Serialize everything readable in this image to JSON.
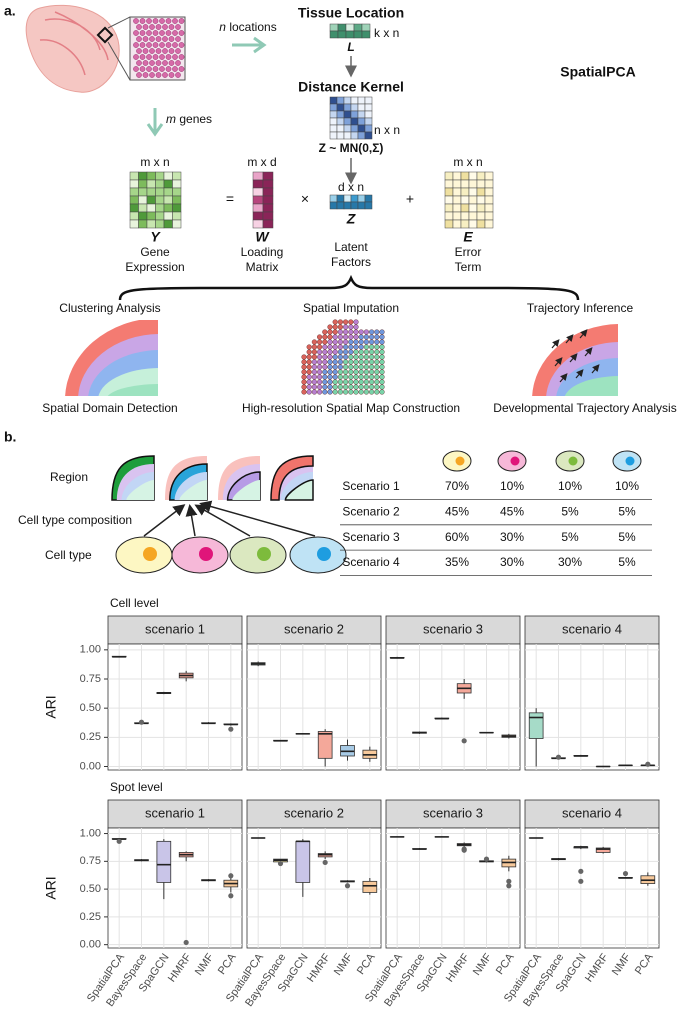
{
  "panel_a": {
    "label": "a.",
    "n_locations": {
      "var": "n",
      "text": "locations"
    },
    "m_genes": {
      "var": "m",
      "text": "genes"
    },
    "tissue_location": {
      "title": "Tissue Location",
      "symbol": "L",
      "dims": "k x n"
    },
    "distance_kernel": {
      "title": "Distance Kernel",
      "dims": "n x n",
      "prior": "Z ~ MN(0,Σ)"
    },
    "method": "SpatialPCA",
    "terms": [
      {
        "symbol": "Y",
        "dims": "m x n",
        "label": "Gene Expression"
      },
      {
        "symbol": "W",
        "dims": "m x d",
        "label": "Loading Matrix"
      },
      {
        "symbol": "Z",
        "dims": "d x n",
        "label": "Latent Factors"
      },
      {
        "symbol": "E",
        "dims": "m x n",
        "label": "Error Term"
      }
    ],
    "operators": [
      "=",
      "×",
      "+"
    ],
    "applications": [
      {
        "title": "Clustering Analysis",
        "caption": "Spatial Domain Detection"
      },
      {
        "title": "Spatial Imputation",
        "caption": "High-resolution Spatial Map Construction"
      },
      {
        "title": "Trajectory Inference",
        "caption": "Developmental Trajectory Analysis"
      }
    ]
  },
  "panel_b": {
    "label": "b.",
    "region": "Region",
    "composition": "Cell type composition",
    "cell_type": "Cell type",
    "table": {
      "rows": [
        [
          "Scenario 1",
          "70%",
          "10%",
          "10%",
          "10%"
        ],
        [
          "Scenario 2",
          "45%",
          "45%",
          "5%",
          "5%"
        ],
        [
          "Scenario 3",
          "60%",
          "30%",
          "5%",
          "5%"
        ],
        [
          "Scenario 4",
          "35%",
          "30%",
          "30%",
          "5%"
        ]
      ]
    }
  },
  "chart_data": [
    {
      "type": "box",
      "title": "Cell level",
      "ylabel": "ARI",
      "colors": [
        "#a6dbc8",
        "#f2e7a0",
        "#c9c5e8",
        "#f4a89a",
        "#a8cbe6",
        "#f7c99b"
      ],
      "ylim": [
        -0.03,
        1.05
      ],
      "yticks": [
        {
          "value": 0,
          "label": "0.00"
        },
        {
          "value": 0.25,
          "label": "0.25"
        },
        {
          "value": 0.5,
          "label": "0.50"
        },
        {
          "value": 0.75,
          "label": "0.75"
        },
        {
          "value": 1,
          "label": "1.00"
        }
      ],
      "grid": true,
      "facets": [
        {
          "title": "scenario 1",
          "boxes": [
            [
              0.935,
              0.94,
              0.94,
              0.945,
              0.945
            ],
            [
              0.36,
              0.37,
              0.37,
              0.375,
              0.38
            ],
            [
              0.62,
              0.625,
              0.63,
              0.635,
              0.64
            ],
            [
              0.73,
              0.76,
              0.78,
              0.8,
              0.82
            ],
            [
              0.365,
              0.37,
              0.37,
              0.375,
              0.38
            ],
            [
              0.35,
              0.36,
              0.36,
              0.365,
              0.37
            ]
          ],
          "outliers": [
            [],
            [
              0.38
            ],
            [],
            [],
            [],
            [
              0.32
            ]
          ]
        },
        {
          "title": "scenario 2",
          "boxes": [
            [
              0.86,
              0.87,
              0.88,
              0.89,
              0.9
            ],
            [
              0.22,
              0.22,
              0.22,
              0.225,
              0.225
            ],
            [
              0.275,
              0.28,
              0.28,
              0.28,
              0.285
            ],
            [
              0,
              0.07,
              0.28,
              0.3,
              0.32
            ],
            [
              0.05,
              0.09,
              0.13,
              0.18,
              0.23
            ],
            [
              0.04,
              0.07,
              0.1,
              0.14,
              0.17
            ]
          ],
          "outliers": [
            [],
            [],
            [],
            [],
            [],
            []
          ]
        },
        {
          "title": "scenario 3",
          "boxes": [
            [
              0.925,
              0.93,
              0.93,
              0.935,
              0.94
            ],
            [
              0.28,
              0.285,
              0.29,
              0.295,
              0.3
            ],
            [
              0.405,
              0.41,
              0.41,
              0.415,
              0.42
            ],
            [
              0.58,
              0.63,
              0.67,
              0.71,
              0.75
            ],
            [
              0.285,
              0.29,
              0.29,
              0.29,
              0.295
            ],
            [
              0.24,
              0.25,
              0.26,
              0.27,
              0.28
            ]
          ],
          "outliers": [
            [],
            [],
            [],
            [
              0.22
            ],
            [],
            []
          ]
        },
        {
          "title": "scenario 4",
          "boxes": [
            [
              0,
              0.24,
              0.42,
              0.46,
              0.5
            ],
            [
              0.065,
              0.07,
              0.07,
              0.075,
              0.08
            ],
            [
              0.085,
              0.09,
              0.09,
              0.095,
              0.1
            ],
            [
              0,
              0,
              0,
              0,
              0.005
            ],
            [
              0.005,
              0.01,
              0.01,
              0.01,
              0.015
            ],
            [
              0.005,
              0.01,
              0.01,
              0.01,
              0.015
            ]
          ],
          "outliers": [
            [],
            [
              0.08
            ],
            [],
            [],
            [],
            [
              0.02
            ]
          ]
        }
      ]
    },
    {
      "type": "box",
      "title": "Spot level",
      "ylabel": "ARI",
      "categories": [
        "SpatialPCA",
        "BayesSpace",
        "SpaGCN",
        "HMRF",
        "NMF",
        "PCA"
      ],
      "colors": [
        "#a6dbc8",
        "#f2e7a0",
        "#c9c5e8",
        "#f4a89a",
        "#a8cbe6",
        "#f7c99b"
      ],
      "ylim": [
        -0.03,
        1.05
      ],
      "yticks": [
        {
          "value": 0,
          "label": "0.00"
        },
        {
          "value": 0.25,
          "label": "0.25"
        },
        {
          "value": 0.5,
          "label": "0.50"
        },
        {
          "value": 0.75,
          "label": "0.75"
        },
        {
          "value": 1,
          "label": "1.00"
        }
      ],
      "grid": true,
      "facets": [
        {
          "title": "scenario 1",
          "boxes": [
            [
              0.94,
              0.95,
              0.95,
              0.955,
              0.96
            ],
            [
              0.75,
              0.755,
              0.76,
              0.765,
              0.77
            ],
            [
              0.41,
              0.56,
              0.72,
              0.93,
              0.95
            ],
            [
              0.75,
              0.79,
              0.81,
              0.83,
              0.84
            ],
            [
              0.57,
              0.575,
              0.58,
              0.585,
              0.59
            ],
            [
              0.47,
              0.52,
              0.55,
              0.58,
              0.6
            ]
          ],
          "outliers": [
            [
              0.93
            ],
            [],
            [],
            [
              0.02
            ],
            [],
            [
              0.62,
              0.44
            ]
          ]
        },
        {
          "title": "scenario 2",
          "boxes": [
            [
              0.955,
              0.96,
              0.96,
              0.96,
              0.965
            ],
            [
              0.74,
              0.745,
              0.76,
              0.77,
              0.77
            ],
            [
              0.43,
              0.56,
              0.93,
              0.93,
              0.95
            ],
            [
              0.77,
              0.79,
              0.81,
              0.82,
              0.84
            ],
            [
              0.56,
              0.565,
              0.57,
              0.575,
              0.58
            ],
            [
              0.45,
              0.47,
              0.53,
              0.57,
              0.6
            ]
          ],
          "outliers": [
            [],
            [
              0.73
            ],
            [],
            [
              0.74
            ],
            [
              0.53
            ],
            []
          ]
        },
        {
          "title": "scenario 3",
          "boxes": [
            [
              0.965,
              0.97,
              0.97,
              0.97,
              0.975
            ],
            [
              0.855,
              0.86,
              0.86,
              0.865,
              0.87
            ],
            [
              0.965,
              0.97,
              0.97,
              0.97,
              0.975
            ],
            [
              0.88,
              0.89,
              0.9,
              0.91,
              0.92
            ],
            [
              0.74,
              0.745,
              0.75,
              0.755,
              0.76
            ],
            [
              0.66,
              0.7,
              0.74,
              0.77,
              0.8
            ]
          ],
          "outliers": [
            [],
            [],
            [],
            [
              0.86,
              0.85
            ],
            [
              0.77
            ],
            [
              0.57,
              0.53
            ]
          ]
        },
        {
          "title": "scenario 4",
          "boxes": [
            [
              0.955,
              0.96,
              0.96,
              0.96,
              0.965
            ],
            [
              0.76,
              0.765,
              0.77,
              0.775,
              0.78
            ],
            [
              0.86,
              0.87,
              0.88,
              0.88,
              0.89
            ],
            [
              0.82,
              0.83,
              0.86,
              0.87,
              0.88
            ],
            [
              0.595,
              0.6,
              0.6,
              0.605,
              0.61
            ],
            [
              0.53,
              0.55,
              0.58,
              0.62,
              0.65
            ]
          ],
          "outliers": [
            [],
            [],
            [
              0.66,
              0.57
            ],
            [],
            [
              0.64
            ],
            []
          ]
        }
      ]
    }
  ]
}
